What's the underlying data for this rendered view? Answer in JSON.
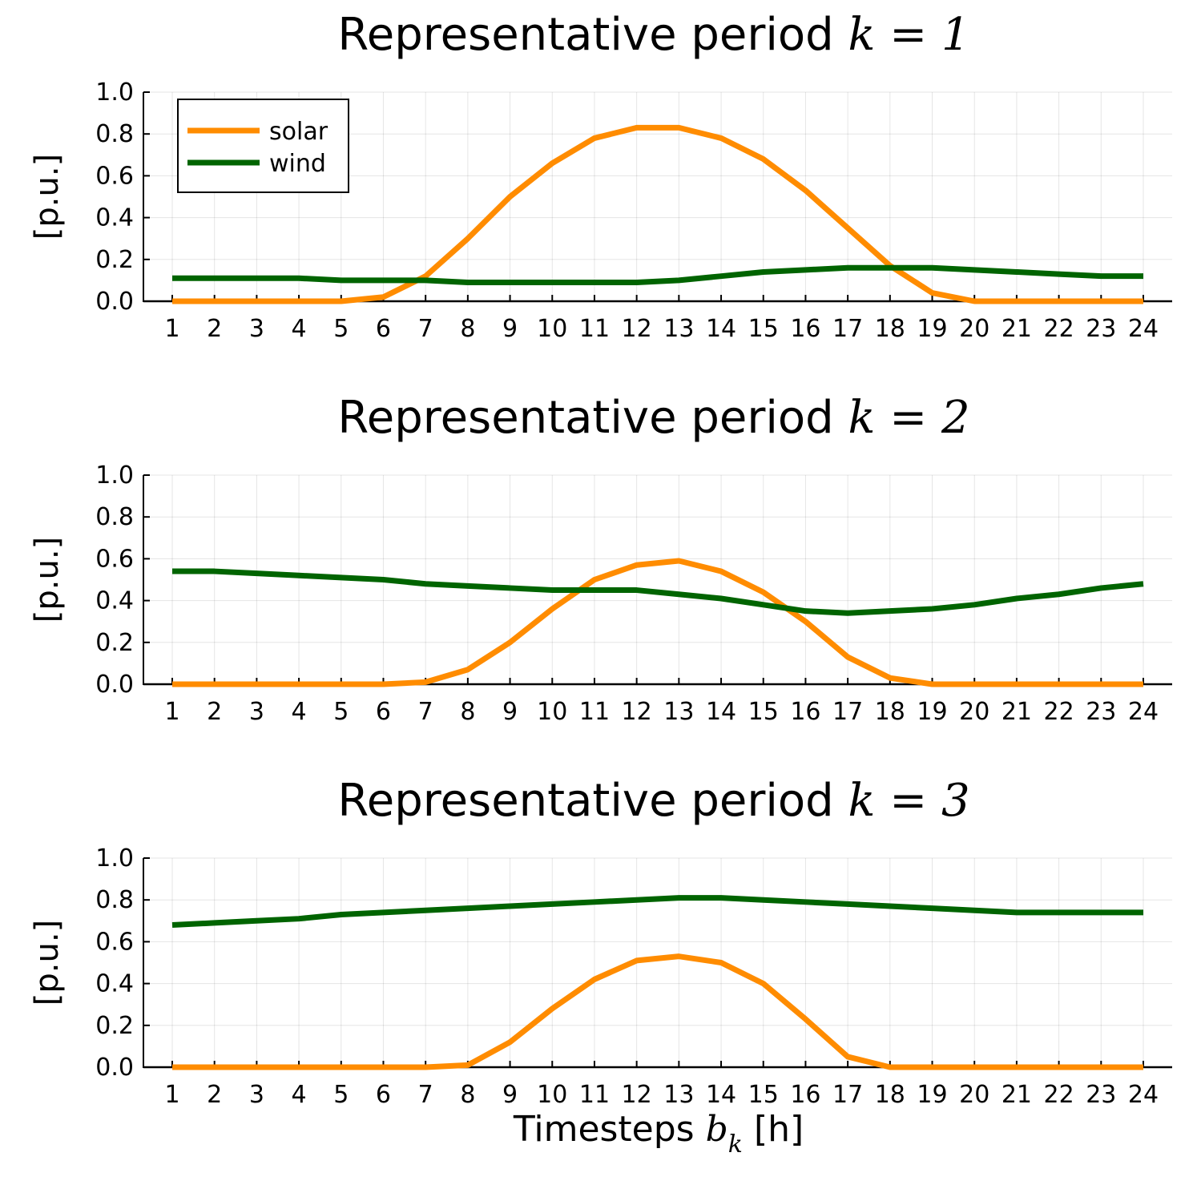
{
  "chart_data": [
    {
      "type": "line",
      "title": {
        "text": "Representative period",
        "math": "k = 1"
      },
      "ylabel": "[p.u.]",
      "xlabel": "",
      "x": [
        1,
        2,
        3,
        4,
        5,
        6,
        7,
        8,
        9,
        10,
        11,
        12,
        13,
        14,
        15,
        16,
        17,
        18,
        19,
        20,
        21,
        22,
        23,
        24
      ],
      "ylim": [
        0,
        1.0
      ],
      "yticks": [
        "0.0",
        "0.2",
        "0.4",
        "0.6",
        "0.8",
        "1.0"
      ],
      "grid": true,
      "legend": "top-left",
      "series": [
        {
          "name": "solar",
          "color": "#ff8c00",
          "values": [
            0,
            0,
            0,
            0,
            0,
            0.02,
            0.12,
            0.3,
            0.5,
            0.66,
            0.78,
            0.83,
            0.83,
            0.78,
            0.68,
            0.53,
            0.35,
            0.17,
            0.04,
            0,
            0,
            0,
            0,
            0
          ]
        },
        {
          "name": "wind",
          "color": "#006400",
          "values": [
            0.11,
            0.11,
            0.11,
            0.11,
            0.1,
            0.1,
            0.1,
            0.09,
            0.09,
            0.09,
            0.09,
            0.09,
            0.1,
            0.12,
            0.14,
            0.15,
            0.16,
            0.16,
            0.16,
            0.15,
            0.14,
            0.13,
            0.12,
            0.12
          ]
        }
      ]
    },
    {
      "type": "line",
      "title": {
        "text": "Representative period",
        "math": "k = 2"
      },
      "ylabel": "[p.u.]",
      "xlabel": "",
      "x": [
        1,
        2,
        3,
        4,
        5,
        6,
        7,
        8,
        9,
        10,
        11,
        12,
        13,
        14,
        15,
        16,
        17,
        18,
        19,
        20,
        21,
        22,
        23,
        24
      ],
      "ylim": [
        0,
        1.0
      ],
      "yticks": [
        "0.0",
        "0.2",
        "0.4",
        "0.6",
        "0.8",
        "1.0"
      ],
      "grid": true,
      "series": [
        {
          "color": "#ff8c00",
          "values": [
            0,
            0,
            0,
            0,
            0,
            0,
            0.01,
            0.07,
            0.2,
            0.36,
            0.5,
            0.57,
            0.59,
            0.54,
            0.44,
            0.3,
            0.13,
            0.03,
            0,
            0,
            0,
            0,
            0,
            0
          ]
        },
        {
          "color": "#006400",
          "values": [
            0.54,
            0.54,
            0.53,
            0.52,
            0.51,
            0.5,
            0.48,
            0.47,
            0.46,
            0.45,
            0.45,
            0.45,
            0.43,
            0.41,
            0.38,
            0.35,
            0.34,
            0.35,
            0.36,
            0.38,
            0.41,
            0.43,
            0.46,
            0.48
          ]
        }
      ]
    },
    {
      "type": "line",
      "title": {
        "text": "Representative period",
        "math": "k = 3"
      },
      "ylabel": "[p.u.]",
      "xlabel": {
        "text": "Timesteps",
        "var": "b",
        "sub": "k",
        "unit": "[h]"
      },
      "x": [
        1,
        2,
        3,
        4,
        5,
        6,
        7,
        8,
        9,
        10,
        11,
        12,
        13,
        14,
        15,
        16,
        17,
        18,
        19,
        20,
        21,
        22,
        23,
        24
      ],
      "ylim": [
        0,
        1.0
      ],
      "yticks": [
        "0.0",
        "0.2",
        "0.4",
        "0.6",
        "0.8",
        "1.0"
      ],
      "grid": true,
      "series": [
        {
          "color": "#ff8c00",
          "values": [
            0,
            0,
            0,
            0,
            0,
            0,
            0,
            0.01,
            0.12,
            0.28,
            0.42,
            0.51,
            0.53,
            0.5,
            0.4,
            0.23,
            0.05,
            0,
            0,
            0,
            0,
            0,
            0,
            0
          ]
        },
        {
          "color": "#006400",
          "values": [
            0.68,
            0.69,
            0.7,
            0.71,
            0.73,
            0.74,
            0.75,
            0.76,
            0.77,
            0.78,
            0.79,
            0.8,
            0.81,
            0.81,
            0.8,
            0.79,
            0.78,
            0.77,
            0.76,
            0.75,
            0.74,
            0.74,
            0.74,
            0.74
          ]
        }
      ]
    }
  ]
}
